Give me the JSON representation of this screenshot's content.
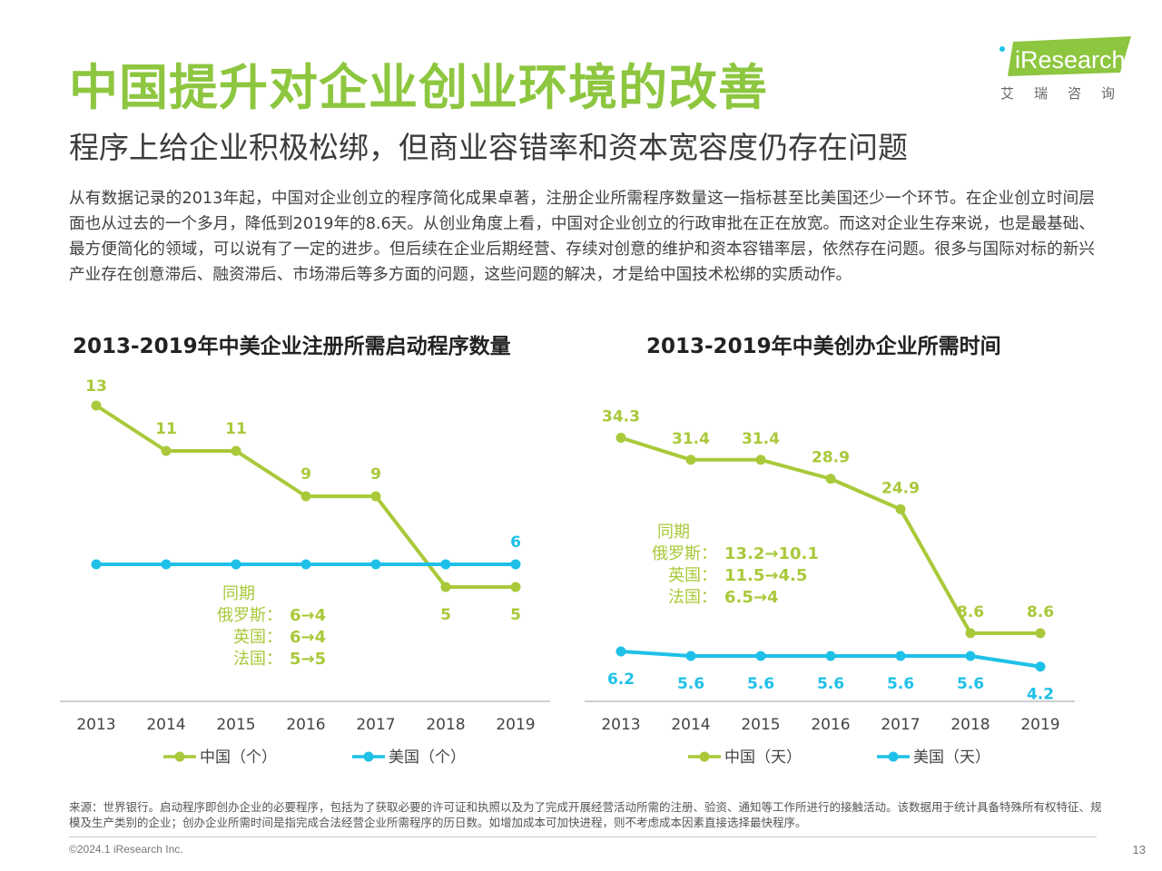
{
  "header": {
    "title": "中国提升对企业创业环境的改善",
    "subtitle": "程序上给企业积极松绑，但商业容错率和资本宽容度仍存在问题",
    "logo_text": "iResearch",
    "logo_sub": "艾瑞咨询"
  },
  "body_text": "从有数据记录的2013年起，中国对企业创立的程序简化成果卓著，注册企业所需程序数量这一指标甚至比美国还少一个环节。在企业创立时间层面也从过去的一个多月，降低到2019年的8.6天。从创业角度上看，中国对企业创立的行政审批在正在放宽。而这对企业生存来说，也是最基础、最方便简化的领域，可以说有了一定的进步。但后续在企业后期经营、存续对创意的维护和资本容错率层，依然存在问题。很多与国际对标的新兴产业存在创意滞后、融资滞后、市场滞后等多方面的问题，这些问题的解决，才是给中国技术松绑的实质动作。",
  "colors": {
    "china": "#a9c93a",
    "usa": "#1fc0e8",
    "title_green": "#8dc63f",
    "axis": "#bfbfbf"
  },
  "chart_data": [
    {
      "type": "line",
      "title": "2013-2019年中美企业注册所需启动程序数量",
      "categories": [
        "2013",
        "2014",
        "2015",
        "2016",
        "2017",
        "2018",
        "2019"
      ],
      "series": [
        {
          "name": "中国（个）",
          "values": [
            13,
            11,
            11,
            9,
            9,
            5,
            5
          ],
          "color": "#a9c93a",
          "labels": [
            "13",
            "11",
            "11",
            "9",
            "9",
            "5",
            "5"
          ]
        },
        {
          "name": "美国（个）",
          "values": [
            6,
            6,
            6,
            6,
            6,
            6,
            6
          ],
          "color": "#1fc0e8",
          "labels": [
            "",
            "",
            "",
            "",
            "",
            "",
            "6"
          ]
        }
      ],
      "annotation": {
        "heading": "同期",
        "rows": [
          {
            "country": "俄罗斯：",
            "value": "6→4"
          },
          {
            "country": "英国：",
            "value": "6→4"
          },
          {
            "country": "法国：",
            "value": "5→5"
          }
        ]
      },
      "legend_position": "bottom"
    },
    {
      "type": "line",
      "title": "2013-2019年中美创办企业所需时间",
      "categories": [
        "2013",
        "2014",
        "2015",
        "2016",
        "2017",
        "2018",
        "2019"
      ],
      "series": [
        {
          "name": "中国（天）",
          "values": [
            34.3,
            31.4,
            31.4,
            28.9,
            24.9,
            8.6,
            8.6
          ],
          "color": "#a9c93a",
          "labels": [
            "34.3",
            "31.4",
            "31.4",
            "28.9",
            "24.9",
            "8.6",
            "8.6"
          ]
        },
        {
          "name": "美国（天）",
          "values": [
            6.2,
            5.6,
            5.6,
            5.6,
            5.6,
            5.6,
            4.2
          ],
          "color": "#1fc0e8",
          "labels": [
            "6.2",
            "5.6",
            "5.6",
            "5.6",
            "5.6",
            "5.6",
            "4.2"
          ]
        }
      ],
      "annotation": {
        "heading": "同期",
        "rows": [
          {
            "country": "俄罗斯：",
            "value": "13.2→10.1"
          },
          {
            "country": "英国：",
            "value": "11.5→4.5"
          },
          {
            "country": "法国：",
            "value": "6.5→4"
          }
        ]
      },
      "legend_position": "bottom"
    }
  ],
  "footer": {
    "note": "来源：世界银行。启动程序即创办企业的必要程序，包括为了获取必要的许可证和执照以及为了完成开展经营活动所需的注册、验资、通知等工作所进行的接触活动。该数据用于统计具备特殊所有权特征、规模及生产类别的企业；创办企业所需时间是指完成合法经营企业所需程序的历日数。如增加成本可加快进程，则不考虑成本因素直接选择最快程序。",
    "copyright": "©2024.1 iResearch Inc.",
    "page_number": "13"
  }
}
